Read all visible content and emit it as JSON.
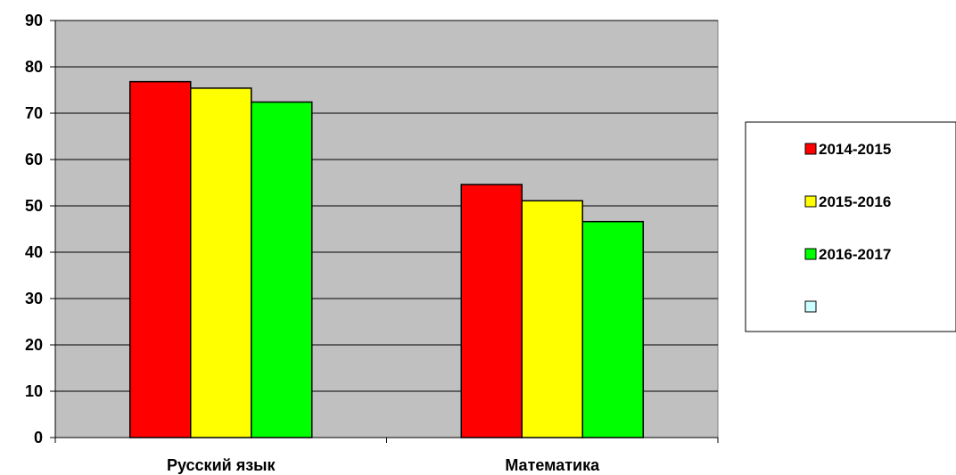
{
  "chart_data": {
    "type": "bar",
    "categories": [
      "Русский язык",
      "Математика"
    ],
    "series": [
      {
        "name": "2014-2015",
        "color": "#ff0000",
        "values": [
          76.8,
          54.6
        ]
      },
      {
        "name": "2015-2016",
        "color": "#ffff00",
        "values": [
          75.4,
          51.1
        ]
      },
      {
        "name": "2016-2017",
        "color": "#00ff00",
        "values": [
          72.4,
          46.6
        ]
      },
      {
        "name": "",
        "color": "#ccffff",
        "values": [
          null,
          null
        ]
      }
    ],
    "yticks": [
      "0",
      "10",
      "20",
      "30",
      "40",
      "50",
      "60",
      "70",
      "80",
      "90"
    ],
    "ylim": [
      0,
      90
    ],
    "grid": true,
    "plot_background": "#c0c0c0",
    "legend_position": "right",
    "title": "",
    "xlabel": "",
    "ylabel": ""
  }
}
